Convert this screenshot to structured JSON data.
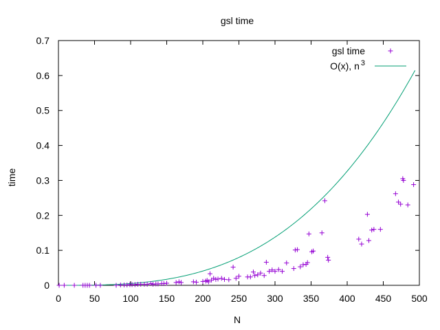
{
  "chart_data": {
    "type": "scatter",
    "title": "gsl time",
    "xlabel": "N",
    "ylabel": "time",
    "xlim": [
      0,
      500
    ],
    "ylim": [
      0,
      0.7
    ],
    "xticks": [
      0,
      50,
      100,
      150,
      200,
      250,
      300,
      350,
      400,
      450,
      500
    ],
    "yticks": [
      0,
      0.1,
      0.2,
      0.3,
      0.4,
      0.5,
      0.6,
      0.7
    ],
    "xtick_labels": [
      "0",
      "50",
      "100",
      "150",
      "200",
      "250",
      "300",
      "350",
      "400",
      "450",
      "500"
    ],
    "ytick_labels": [
      "0",
      "0.1",
      "0.2",
      "0.3",
      "0.4",
      "0.5",
      "0.6",
      "0.7"
    ],
    "grid": false,
    "legend_position": "top-right",
    "series": [
      {
        "name": "gsl time",
        "kind": "points",
        "marker": "+",
        "color": "#9400d3",
        "points": [
          [
            1,
            0
          ],
          [
            8,
            0
          ],
          [
            22,
            0
          ],
          [
            34,
            0
          ],
          [
            37,
            0
          ],
          [
            40,
            0
          ],
          [
            43,
            0
          ],
          [
            52,
            0
          ],
          [
            58,
            0
          ],
          [
            80,
            0
          ],
          [
            86,
            0.001
          ],
          [
            91,
            0.001
          ],
          [
            95,
            0.001
          ],
          [
            99,
            0.002
          ],
          [
            102,
            0.002
          ],
          [
            106,
            0.002
          ],
          [
            110,
            0.003
          ],
          [
            114,
            0.003
          ],
          [
            119,
            0.003
          ],
          [
            123,
            0.003
          ],
          [
            128,
            0.005
          ],
          [
            131,
            0.003
          ],
          [
            135,
            0.004
          ],
          [
            138,
            0.004
          ],
          [
            143,
            0.005
          ],
          [
            146,
            0.005
          ],
          [
            150,
            0.006
          ],
          [
            163,
            0.008
          ],
          [
            167,
            0.01
          ],
          [
            170,
            0.008
          ],
          [
            187,
            0.01
          ],
          [
            191,
            0.009
          ],
          [
            200,
            0.011
          ],
          [
            204,
            0.012
          ],
          [
            206,
            0.014
          ],
          [
            208,
            0.01
          ],
          [
            210,
            0.033
          ],
          [
            212,
            0.015
          ],
          [
            215,
            0.02
          ],
          [
            218,
            0.017
          ],
          [
            221,
            0.018
          ],
          [
            226,
            0.02
          ],
          [
            230,
            0.017
          ],
          [
            236,
            0.016
          ],
          [
            242,
            0.052
          ],
          [
            246,
            0.02
          ],
          [
            250,
            0.026
          ],
          [
            262,
            0.024
          ],
          [
            266,
            0.024
          ],
          [
            270,
            0.038
          ],
          [
            272,
            0.028
          ],
          [
            276,
            0.03
          ],
          [
            280,
            0.035
          ],
          [
            285,
            0.028
          ],
          [
            288,
            0.066
          ],
          [
            292,
            0.04
          ],
          [
            296,
            0.044
          ],
          [
            300,
            0.04
          ],
          [
            305,
            0.045
          ],
          [
            310,
            0.04
          ],
          [
            316,
            0.064
          ],
          [
            326,
            0.048
          ],
          [
            328,
            0.101
          ],
          [
            331,
            0.102
          ],
          [
            335,
            0.053
          ],
          [
            339,
            0.059
          ],
          [
            343,
            0.06
          ],
          [
            345,
            0.065
          ],
          [
            347,
            0.147
          ],
          [
            351,
            0.096
          ],
          [
            353,
            0.098
          ],
          [
            365,
            0.15
          ],
          [
            369,
            0.242
          ],
          [
            373,
            0.08
          ],
          [
            374,
            0.072
          ],
          [
            416,
            0.132
          ],
          [
            420,
            0.118
          ],
          [
            428,
            0.203
          ],
          [
            430,
            0.128
          ],
          [
            434,
            0.158
          ],
          [
            437,
            0.16
          ],
          [
            446,
            0.16
          ],
          [
            467,
            0.262
          ],
          [
            471,
            0.238
          ],
          [
            474,
            0.232
          ],
          [
            477,
            0.305
          ],
          [
            478,
            0.3
          ],
          [
            484,
            0.23
          ],
          [
            492,
            0.288
          ]
        ]
      },
      {
        "name": "O(x), n³",
        "label_main": "O(x), n",
        "label_sup": "3",
        "kind": "line",
        "color": "#009e73",
        "coefficient": 5.1e-09,
        "x_range": [
          0,
          494
        ]
      }
    ]
  }
}
